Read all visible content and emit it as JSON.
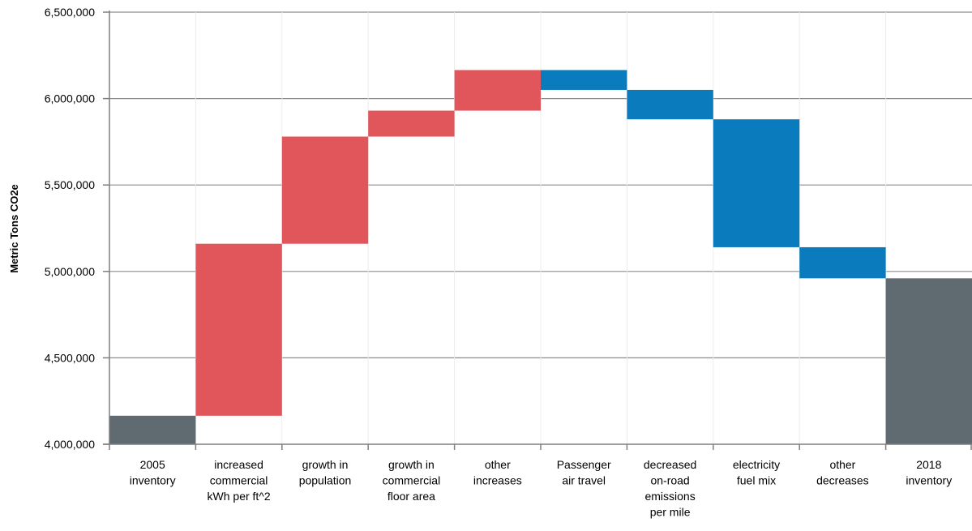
{
  "chart_data": {
    "type": "bar",
    "subtype": "waterfall",
    "ylabel": "Metric Tons CO2e",
    "ylim": [
      4000000,
      6500000
    ],
    "yticks": [
      "4,000,000",
      "4,500,000",
      "5,000,000",
      "5,500,000",
      "6,000,000",
      "6,500,000"
    ],
    "ytick_values": [
      4000000,
      4500000,
      5000000,
      5500000,
      6000000,
      6500000
    ],
    "grid": true,
    "colors": {
      "total": "#5f6b70",
      "increase": "#e0565a",
      "decrease": "#0a7bbd"
    },
    "bars": [
      {
        "label": [
          "2005",
          "inventory"
        ],
        "kind": "total",
        "start": 4000000,
        "end": 4165000
      },
      {
        "label": [
          "increased",
          "commercial",
          "kWh per ft^2"
        ],
        "kind": "increase",
        "start": 4165000,
        "end": 5160000
      },
      {
        "label": [
          "growth in",
          "population"
        ],
        "kind": "increase",
        "start": 5160000,
        "end": 5780000
      },
      {
        "label": [
          "growth in",
          "commercial",
          "floor area"
        ],
        "kind": "increase",
        "start": 5780000,
        "end": 5930000
      },
      {
        "label": [
          "other",
          "increases"
        ],
        "kind": "increase",
        "start": 5930000,
        "end": 6165000
      },
      {
        "label": [
          "Passenger",
          "air travel"
        ],
        "kind": "decrease",
        "start": 6165000,
        "end": 6050000
      },
      {
        "label": [
          "decreased",
          "on-road",
          "emissions",
          "per mile"
        ],
        "kind": "decrease",
        "start": 6050000,
        "end": 5880000
      },
      {
        "label": [
          "electricity",
          "fuel mix"
        ],
        "kind": "decrease",
        "start": 5880000,
        "end": 5140000
      },
      {
        "label": [
          "other",
          "decreases"
        ],
        "kind": "decrease",
        "start": 5140000,
        "end": 4960000
      },
      {
        "label": [
          "2018",
          "inventory"
        ],
        "kind": "total",
        "start": 4000000,
        "end": 4960000
      }
    ]
  }
}
